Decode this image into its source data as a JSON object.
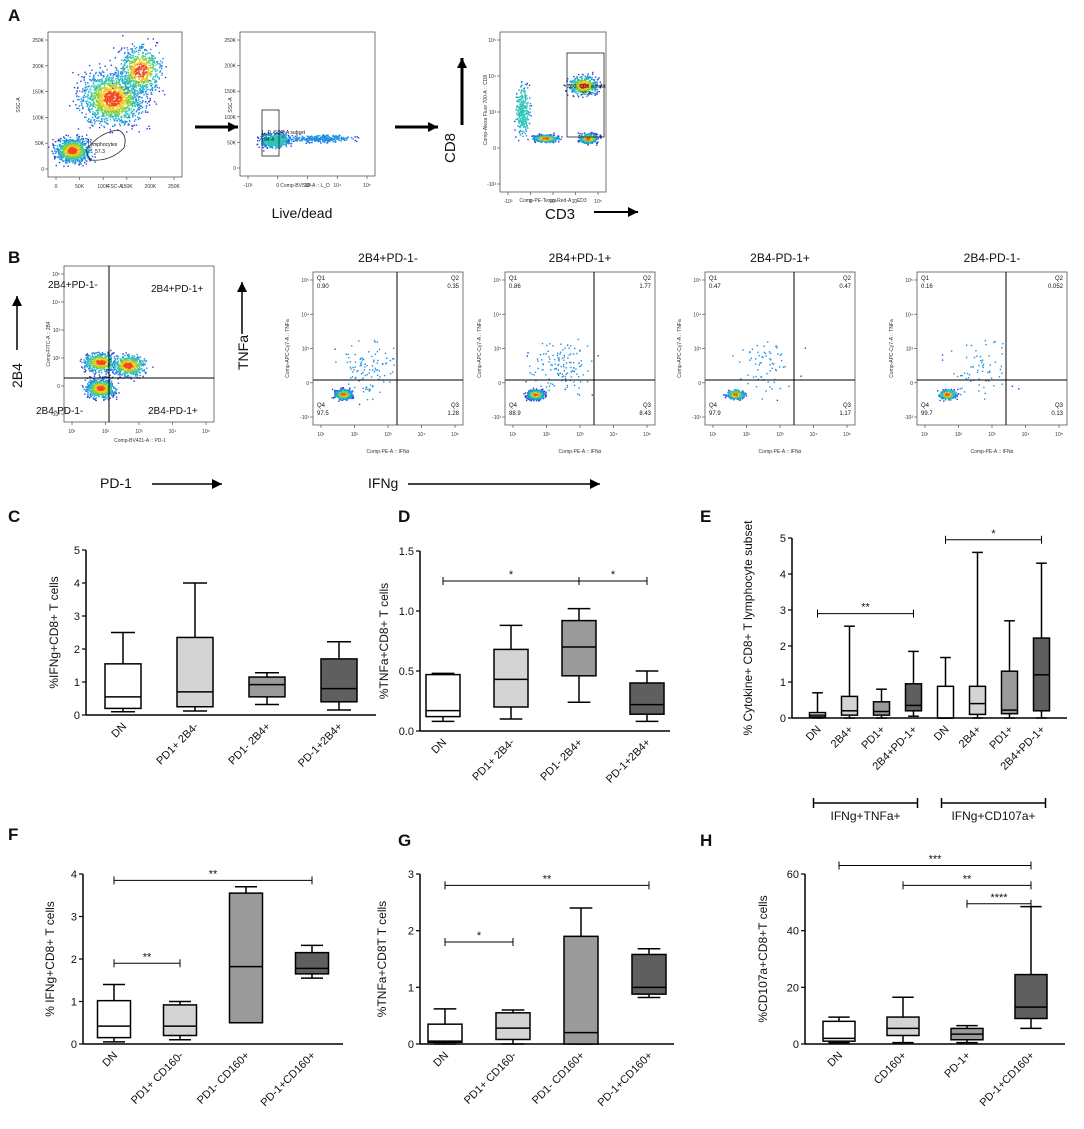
{
  "panels": {
    "A": {
      "label": "A",
      "plot1": {
        "x_label": "FSC-A",
        "y_label": "SSC-A",
        "gate": "Lymphocytes",
        "gate_value": "57.3",
        "x_ticks": [
          "0",
          "50K",
          "100K",
          "150K",
          "200K",
          "250K"
        ],
        "y_ticks": [
          "0",
          "50K",
          "100K",
          "150K",
          "200K",
          "250K"
        ]
      },
      "plot2": {
        "x_label": "Comp-BV510-A :: L_D",
        "y_label": "SSC-A",
        "gate": "L_D, SSC-A subset",
        "gate_value": "94.4",
        "caption": "Live/dead",
        "x_ticks": [
          "-10³",
          "0",
          "10³",
          "10⁴",
          "10⁵"
        ],
        "y_ticks": [
          "0",
          "50K",
          "100K",
          "150K",
          "200K",
          "250K"
        ]
      },
      "plot3": {
        "x_label": "Comp-PE-Texas Red-A :: CD3",
        "y_label": "Comp-Alexa Fluor 700-A :: CD8",
        "gate": "CD3, CD8 subset",
        "gate_value": "33.4",
        "axis_x": "CD3",
        "axis_y": "CD8",
        "x_ticks": [
          "-10³",
          "0",
          "10³",
          "10⁴",
          "10⁵"
        ],
        "y_ticks": [
          "-10³",
          "0",
          "10³",
          "10⁴",
          "10⁵"
        ]
      }
    },
    "B": {
      "label": "B",
      "first_plot": {
        "x_label": "Comp-BV421-A :: PD-1",
        "y_label": "Comp-FITC-A :: 2B4",
        "q_tl": "2B4+PD-1-",
        "q_tr": "2B4+PD-1+",
        "q_bl": "2B4-PD-1-",
        "q_br": "2B4-PD-1+",
        "axis_x": "PD-1",
        "axis_y": "2B4",
        "x_ticks": [
          "10¹",
          "10²",
          "10³",
          "10⁴",
          "10⁵"
        ],
        "y_ticks": [
          "-10²",
          "0",
          "10²",
          "10³",
          "10⁴",
          "10⁵"
        ]
      },
      "quad_plots": [
        {
          "title": "2B4+PD-1-",
          "q1": "0.90",
          "q2": "0.35",
          "q3": "1.28",
          "q4": "97.5"
        },
        {
          "title": "2B4+PD-1+",
          "q1": "0.86",
          "q2": "1.77",
          "q3": "8.43",
          "q4": "88.9"
        },
        {
          "title": "2B4-PD-1+",
          "q1": "0.47",
          "q2": "0.47",
          "q3": "1.17",
          "q4": "97.9"
        },
        {
          "title": "2B4-PD-1-",
          "q1": "0.16",
          "q2": "0.052",
          "q3": "0.13",
          "q4": "99.7"
        }
      ],
      "q_names": [
        "Q1",
        "Q2",
        "Q3",
        "Q4"
      ],
      "quad_x_label": "Comp-PE-A :: IFNα",
      "quad_y_label": "Comp-APC-Cy7-A :: TNFa",
      "axis_x": "IFNg",
      "axis_y": "TNFa",
      "x_ticks": [
        "10¹",
        "10²",
        "10³",
        "10⁴",
        "10⁵"
      ],
      "y_ticks": [
        "-10³",
        "0",
        "10³",
        "10⁴",
        "10⁵"
      ]
    }
  },
  "chart_data": [
    {
      "id": "C",
      "type": "box",
      "ylabel": "%IFNg+CD8+ T cells",
      "ylim": [
        0,
        5
      ],
      "yticks": [
        0,
        1,
        2,
        3,
        4,
        5
      ],
      "categories": [
        "DN",
        "PD1+ 2B4-",
        "PD1- 2B4+",
        "PD-1+2B4+"
      ],
      "fills": [
        "#ffffff",
        "#d4d4d4",
        "#9a9a9a",
        "#5f5f5f"
      ],
      "boxes": [
        {
          "min": 0.1,
          "q1": 0.2,
          "median": 0.55,
          "q3": 1.55,
          "max": 2.5
        },
        {
          "min": 0.12,
          "q1": 0.25,
          "median": 0.7,
          "q3": 2.35,
          "max": 4.0
        },
        {
          "min": 0.32,
          "q1": 0.55,
          "median": 0.92,
          "q3": 1.15,
          "max": 1.28
        },
        {
          "min": 0.15,
          "q1": 0.4,
          "median": 0.8,
          "q3": 1.7,
          "max": 2.22
        }
      ],
      "sig": []
    },
    {
      "id": "D",
      "type": "box",
      "ylabel": "%TNFa+CD8+ T cells",
      "ylim": [
        0,
        1.5
      ],
      "yticks": [
        0.0,
        0.5,
        1.0,
        1.5
      ],
      "categories": [
        "DN",
        "PD1+ 2B4-",
        "PD1- 2B4+",
        "PD-1+2B4+"
      ],
      "fills": [
        "#ffffff",
        "#d4d4d4",
        "#9a9a9a",
        "#5f5f5f"
      ],
      "boxes": [
        {
          "min": 0.08,
          "q1": 0.12,
          "median": 0.17,
          "q3": 0.47,
          "max": 0.48
        },
        {
          "min": 0.1,
          "q1": 0.2,
          "median": 0.43,
          "q3": 0.68,
          "max": 0.88
        },
        {
          "min": 0.24,
          "q1": 0.46,
          "median": 0.7,
          "q3": 0.92,
          "max": 1.02
        },
        {
          "min": 0.08,
          "q1": 0.14,
          "median": 0.22,
          "q3": 0.4,
          "max": 0.5
        }
      ],
      "sig": [
        {
          "from": 0,
          "to": 2,
          "level": 1.25,
          "label": "*"
        },
        {
          "from": 2,
          "to": 3,
          "level": 1.25,
          "label": "*"
        }
      ]
    },
    {
      "id": "E",
      "type": "box",
      "ylabel": "% Cytokine+ CD8+ T lymphocyte subset",
      "ylim": [
        0,
        5
      ],
      "yticks": [
        0,
        1,
        2,
        3,
        4,
        5
      ],
      "categories": [
        "DN",
        "2B4+",
        "PD1+",
        "2B4+PD-1+",
        "DN",
        "2B4+",
        "PD1+",
        "2B4+PD-1+"
      ],
      "fills": [
        "#ffffff",
        "#d4d4d4",
        "#9a9a9a",
        "#5f5f5f",
        "#ffffff",
        "#d4d4d4",
        "#9a9a9a",
        "#5f5f5f"
      ],
      "boxes": [
        {
          "min": 0.0,
          "q1": 0.03,
          "median": 0.08,
          "q3": 0.15,
          "max": 0.7
        },
        {
          "min": 0.0,
          "q1": 0.08,
          "median": 0.2,
          "q3": 0.6,
          "max": 2.55
        },
        {
          "min": 0.0,
          "q1": 0.08,
          "median": 0.18,
          "q3": 0.45,
          "max": 0.8
        },
        {
          "min": 0.05,
          "q1": 0.2,
          "median": 0.35,
          "q3": 0.95,
          "max": 1.85
        },
        {
          "min": 0.0,
          "q1": 0.0,
          "median": 0.0,
          "q3": 0.88,
          "max": 1.68
        },
        {
          "min": 0.0,
          "q1": 0.1,
          "median": 0.4,
          "q3": 0.88,
          "max": 4.6
        },
        {
          "min": 0.0,
          "q1": 0.12,
          "median": 0.22,
          "q3": 1.3,
          "max": 2.7
        },
        {
          "min": 0.0,
          "q1": 0.2,
          "median": 1.2,
          "q3": 2.22,
          "max": 4.3
        }
      ],
      "sig": [
        {
          "from": 0,
          "to": 3,
          "level": 2.9,
          "label": "**"
        },
        {
          "from": 4,
          "to": 7,
          "level": 4.95,
          "label": "*"
        }
      ],
      "groups": [
        {
          "from": 0,
          "to": 3,
          "label": "IFNg+TNFa+"
        },
        {
          "from": 4,
          "to": 7,
          "label": "IFNg+CD107a+"
        }
      ]
    },
    {
      "id": "F",
      "type": "box",
      "ylabel": "% IFNg+CD8+ T cells",
      "ylim": [
        0,
        4
      ],
      "yticks": [
        0,
        1,
        2,
        3,
        4
      ],
      "categories": [
        "DN",
        "PD1+ CD160-",
        "PD1- CD160+",
        "PD-1+CD160+"
      ],
      "fills": [
        "#ffffff",
        "#d4d4d4",
        "#9a9a9a",
        "#5f5f5f"
      ],
      "boxes": [
        {
          "min": 0.05,
          "q1": 0.15,
          "median": 0.42,
          "q3": 1.02,
          "max": 1.4
        },
        {
          "min": 0.1,
          "q1": 0.2,
          "median": 0.42,
          "q3": 0.92,
          "max": 1.0
        },
        {
          "min": 0.5,
          "q1": 0.5,
          "median": 1.82,
          "q3": 3.55,
          "max": 3.7
        },
        {
          "min": 1.55,
          "q1": 1.65,
          "median": 1.78,
          "q3": 2.15,
          "max": 2.32
        }
      ],
      "sig": [
        {
          "from": 0,
          "to": 3,
          "level": 3.85,
          "label": "**"
        },
        {
          "from": 0,
          "to": 1,
          "level": 1.9,
          "label": "**"
        }
      ]
    },
    {
      "id": "G",
      "type": "box",
      "ylabel": "%TNFa+CD8T T cells",
      "ylim": [
        0,
        3
      ],
      "yticks": [
        0,
        1,
        2,
        3
      ],
      "categories": [
        "DN",
        "PD1+ CD160-",
        "PD1- CD160+",
        "PD-1+CD160+"
      ],
      "fills": [
        "#ffffff",
        "#d4d4d4",
        "#9a9a9a",
        "#5f5f5f"
      ],
      "boxes": [
        {
          "min": 0.0,
          "q1": 0.03,
          "median": 0.05,
          "q3": 0.35,
          "max": 0.62
        },
        {
          "min": 0.0,
          "q1": 0.08,
          "median": 0.28,
          "q3": 0.55,
          "max": 0.6
        },
        {
          "min": 0.0,
          "q1": 0.0,
          "median": 0.2,
          "q3": 1.9,
          "max": 2.4
        },
        {
          "min": 0.82,
          "q1": 0.88,
          "median": 1.0,
          "q3": 1.58,
          "max": 1.68
        }
      ],
      "sig": [
        {
          "from": 0,
          "to": 3,
          "level": 2.8,
          "label": "**"
        },
        {
          "from": 0,
          "to": 1,
          "level": 1.8,
          "label": "*"
        }
      ]
    },
    {
      "id": "H",
      "type": "box",
      "ylabel": "%CD107a+CD8+T cells",
      "ylim": [
        0,
        60
      ],
      "yticks": [
        0,
        20,
        40,
        60
      ],
      "categories": [
        "DN",
        "CD160+",
        "PD-1+",
        "PD-1+CD160+"
      ],
      "fills": [
        "#ffffff",
        "#d4d4d4",
        "#9a9a9a",
        "#5f5f5f"
      ],
      "boxes": [
        {
          "min": 0.5,
          "q1": 1.0,
          "median": 2.0,
          "q3": 8.0,
          "max": 9.5
        },
        {
          "min": 0.5,
          "q1": 3.0,
          "median": 5.5,
          "q3": 9.5,
          "max": 16.5
        },
        {
          "min": 0.5,
          "q1": 1.5,
          "median": 3.5,
          "q3": 5.5,
          "max": 6.5
        },
        {
          "min": 5.5,
          "q1": 9.0,
          "median": 13.0,
          "q3": 24.5,
          "max": 48.5
        }
      ],
      "sig": [
        {
          "from": 0,
          "to": 3,
          "level": 63,
          "label": "***"
        },
        {
          "from": 1,
          "to": 3,
          "level": 56,
          "label": "**"
        },
        {
          "from": 2,
          "to": 3,
          "level": 49.5,
          "label": "****"
        }
      ]
    }
  ]
}
